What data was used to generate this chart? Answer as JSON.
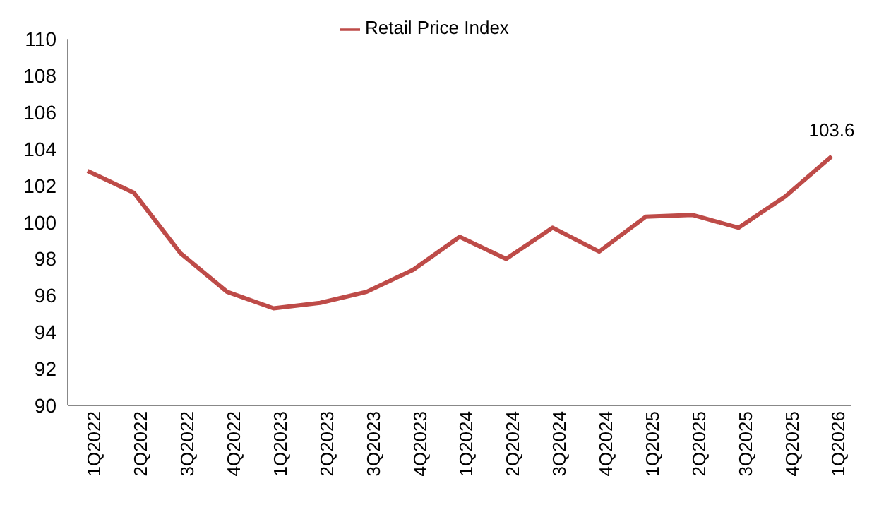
{
  "chart_data": {
    "type": "line",
    "categories": [
      "1Q2022",
      "2Q2022",
      "3Q2022",
      "4Q2022",
      "1Q2023",
      "2Q2023",
      "3Q2023",
      "4Q2023",
      "1Q2024",
      "2Q2024",
      "3Q2024",
      "4Q2024",
      "1Q2025",
      "2Q2025",
      "3Q2025",
      "4Q2025",
      "1Q2026"
    ],
    "series": [
      {
        "name": "Retail Price Index",
        "color": "#be4b48",
        "values": [
          102.8,
          101.6,
          98.3,
          96.2,
          95.3,
          95.6,
          96.2,
          97.4,
          99.2,
          98.0,
          99.7,
          98.4,
          100.3,
          100.4,
          99.7,
          101.4,
          103.6
        ],
        "value_labels": [
          null,
          null,
          null,
          null,
          null,
          null,
          null,
          null,
          null,
          null,
          null,
          null,
          null,
          null,
          null,
          null,
          "103.6"
        ]
      }
    ],
    "ylim": [
      90,
      110
    ],
    "yticks": [
      90,
      92,
      94,
      96,
      98,
      100,
      102,
      104,
      106,
      108,
      110
    ],
    "legend": "top",
    "marker": "none",
    "line_style": "solid"
  }
}
